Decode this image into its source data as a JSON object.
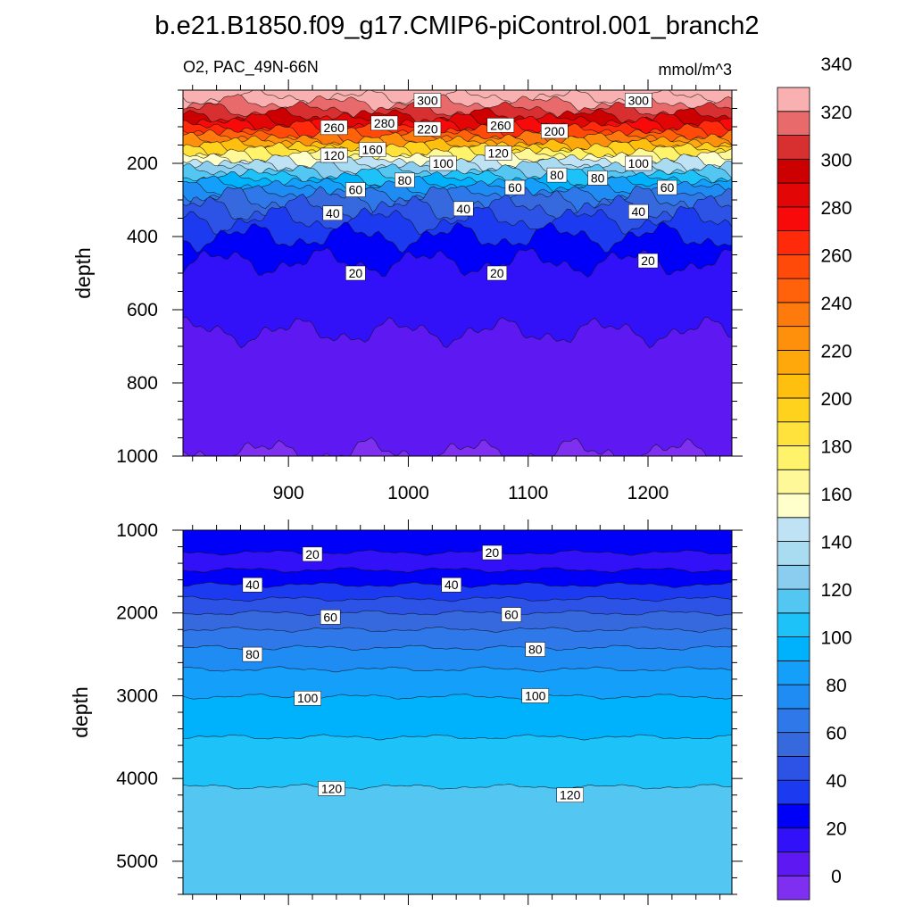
{
  "title": "b.e21.B1850.f09_g17.CMIP6-piControl.001_branch2",
  "chart_data": [
    {
      "type": "contour",
      "panel": "top",
      "left_label": "O2, PAC_49N-66N",
      "right_label": "mmol/m^3",
      "ylabel": "depth",
      "xlabel": "",
      "xlim": [
        812,
        1270
      ],
      "ylim": [
        0,
        1000
      ],
      "y_reversed": true,
      "xticks": [
        900,
        1000,
        1100,
        1200
      ],
      "yticks": [
        200,
        400,
        600,
        800,
        1000
      ],
      "contour_levels_depth_profile": [
        {
          "value": 330,
          "depth": 20
        },
        {
          "value": 320,
          "depth": 35
        },
        {
          "value": 310,
          "depth": 55
        },
        {
          "value": 300,
          "depth": 72
        },
        {
          "value": 290,
          "depth": 85
        },
        {
          "value": 280,
          "depth": 95
        },
        {
          "value": 270,
          "depth": 105
        },
        {
          "value": 260,
          "depth": 115
        },
        {
          "value": 250,
          "depth": 125
        },
        {
          "value": 240,
          "depth": 133
        },
        {
          "value": 230,
          "depth": 140
        },
        {
          "value": 220,
          "depth": 148
        },
        {
          "value": 210,
          "depth": 155
        },
        {
          "value": 200,
          "depth": 162
        },
        {
          "value": 190,
          "depth": 168
        },
        {
          "value": 180,
          "depth": 175
        },
        {
          "value": 170,
          "depth": 182
        },
        {
          "value": 160,
          "depth": 190
        },
        {
          "value": 150,
          "depth": 198
        },
        {
          "value": 140,
          "depth": 207
        },
        {
          "value": 130,
          "depth": 216
        },
        {
          "value": 120,
          "depth": 226
        },
        {
          "value": 110,
          "depth": 236
        },
        {
          "value": 100,
          "depth": 247
        },
        {
          "value": 90,
          "depth": 258
        },
        {
          "value": 80,
          "depth": 270
        },
        {
          "value": 70,
          "depth": 285
        },
        {
          "value": 60,
          "depth": 300
        },
        {
          "value": 50,
          "depth": 325
        },
        {
          "value": 40,
          "depth": 355
        },
        {
          "value": 30,
          "depth": 400
        },
        {
          "value": 20,
          "depth": 470
        },
        {
          "value": 10,
          "depth": 660
        },
        {
          "value": 0,
          "depth": 990
        }
      ],
      "contour_labels": [
        {
          "text": "300",
          "x": 1016,
          "y": 28
        },
        {
          "text": "300",
          "x": 1192,
          "y": 28
        },
        {
          "text": "260",
          "x": 938,
          "y": 102
        },
        {
          "text": "280",
          "x": 980,
          "y": 90
        },
        {
          "text": "220",
          "x": 1016,
          "y": 106
        },
        {
          "text": "260",
          "x": 1077,
          "y": 96
        },
        {
          "text": "200",
          "x": 1122,
          "y": 112
        },
        {
          "text": "120",
          "x": 938,
          "y": 178
        },
        {
          "text": "160",
          "x": 970,
          "y": 162
        },
        {
          "text": "100",
          "x": 1029,
          "y": 200
        },
        {
          "text": "120",
          "x": 1075,
          "y": 172
        },
        {
          "text": "100",
          "x": 1192,
          "y": 200
        },
        {
          "text": "80",
          "x": 997,
          "y": 246
        },
        {
          "text": "60",
          "x": 956,
          "y": 272
        },
        {
          "text": "60",
          "x": 1089,
          "y": 266
        },
        {
          "text": "80",
          "x": 1124,
          "y": 232
        },
        {
          "text": "80",
          "x": 1158,
          "y": 240
        },
        {
          "text": "60",
          "x": 1216,
          "y": 266
        },
        {
          "text": "40",
          "x": 937,
          "y": 336
        },
        {
          "text": "40",
          "x": 1046,
          "y": 324
        },
        {
          "text": "40",
          "x": 1192,
          "y": 332
        },
        {
          "text": "20",
          "x": 956,
          "y": 500
        },
        {
          "text": "20",
          "x": 1074,
          "y": 500
        },
        {
          "text": "20",
          "x": 1200,
          "y": 466
        }
      ]
    },
    {
      "type": "contour",
      "panel": "bottom",
      "ylabel": "depth",
      "xlabel": "",
      "xlim": [
        812,
        1270
      ],
      "ylim": [
        1000,
        5400
      ],
      "y_reversed": true,
      "xticks": [
        900,
        1000,
        1100,
        1200
      ],
      "yticks": [
        1000,
        2000,
        3000,
        4000,
        5000
      ],
      "contour_levels_depth_profile": [
        {
          "value": 20,
          "depth": 1270
        },
        {
          "value": 30,
          "depth": 1480
        },
        {
          "value": 40,
          "depth": 1660
        },
        {
          "value": 50,
          "depth": 1830
        },
        {
          "value": 60,
          "depth": 2000
        },
        {
          "value": 70,
          "depth": 2200
        },
        {
          "value": 80,
          "depth": 2420
        },
        {
          "value": 90,
          "depth": 2680
        },
        {
          "value": 100,
          "depth": 3010
        },
        {
          "value": 110,
          "depth": 3500
        },
        {
          "value": 120,
          "depth": 4100
        }
      ],
      "contour_labels": [
        {
          "text": "20",
          "x": 920,
          "y": 1290
        },
        {
          "text": "20",
          "x": 1070,
          "y": 1270
        },
        {
          "text": "40",
          "x": 870,
          "y": 1660
        },
        {
          "text": "40",
          "x": 1036,
          "y": 1660
        },
        {
          "text": "60",
          "x": 935,
          "y": 2050
        },
        {
          "text": "60",
          "x": 1086,
          "y": 2020
        },
        {
          "text": "80",
          "x": 870,
          "y": 2500
        },
        {
          "text": "80",
          "x": 1106,
          "y": 2440
        },
        {
          "text": "100",
          "x": 916,
          "y": 3030
        },
        {
          "text": "100",
          "x": 1106,
          "y": 3000
        },
        {
          "text": "120",
          "x": 936,
          "y": 4120
        },
        {
          "text": "120",
          "x": 1135,
          "y": 4200
        }
      ]
    }
  ],
  "colorbar": {
    "labels": [
      "0",
      "20",
      "40",
      "60",
      "80",
      "100",
      "120",
      "140",
      "160",
      "180",
      "200",
      "220",
      "240",
      "260",
      "280",
      "300",
      "320",
      "340"
    ],
    "min": -10,
    "max": 360,
    "step": 10,
    "colors": [
      "#7f2ff0",
      "#5e19f2",
      "#3311f8",
      "#0000f8",
      "#1c3af0",
      "#2c52e6",
      "#3669dd",
      "#2f78e9",
      "#1f8cf4",
      "#14a0fa",
      "#00b2fb",
      "#1dc2f9",
      "#53c6f2",
      "#8acdef",
      "#a9dcf1",
      "#bfe3f4",
      "#ffffcc",
      "#fff899",
      "#fff36b",
      "#ffe23c",
      "#ffd21e",
      "#ffbf0f",
      "#ffa80c",
      "#ff900c",
      "#ff7a0c",
      "#ff620a",
      "#ff4a0a",
      "#ff2a0a",
      "#f90a0a",
      "#e20606",
      "#cc0000",
      "#d83030",
      "#e86a6a",
      "#f8b0b0"
    ]
  }
}
